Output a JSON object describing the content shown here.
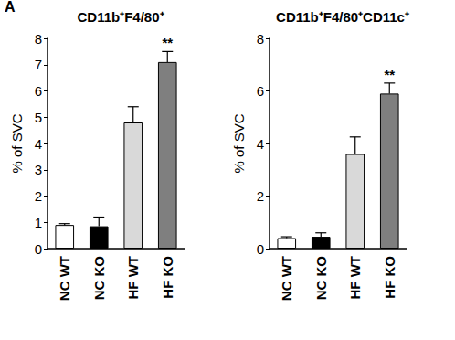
{
  "panel_label": "A",
  "chart_data": [
    {
      "type": "bar",
      "title": "CD11b⁺F4/80⁺",
      "y_label": "% of SVC",
      "categories": [
        "NC WT",
        "NC KO",
        "HF WT",
        "HF KO"
      ],
      "values": [
        0.9,
        0.85,
        4.8,
        7.1
      ],
      "errors": [
        0.05,
        0.35,
        0.6,
        0.4
      ],
      "colors": [
        "#ffffff",
        "#000000",
        "#d9d9d9",
        "#7f7f7f"
      ],
      "annotations": [
        {
          "x": "HF KO",
          "text": "**"
        }
      ],
      "ylim": [
        0,
        8
      ],
      "yticks": [
        0,
        1,
        2,
        3,
        4,
        5,
        6,
        7,
        8
      ],
      "grid": false
    },
    {
      "type": "bar",
      "title": "CD11b⁺F4/80⁺CD11c⁺",
      "y_label": "% of SVC",
      "categories": [
        "NC WT",
        "NC KO",
        "HF WT",
        "HF KO"
      ],
      "values": [
        0.4,
        0.45,
        3.6,
        5.9
      ],
      "errors": [
        0.05,
        0.15,
        0.65,
        0.4
      ],
      "colors": [
        "#ffffff",
        "#000000",
        "#d9d9d9",
        "#7f7f7f"
      ],
      "annotations": [
        {
          "x": "HF KO",
          "text": "**"
        }
      ],
      "ylim": [
        0,
        8
      ],
      "yticks": [
        0,
        2,
        4,
        6,
        8
      ],
      "grid": false
    }
  ]
}
